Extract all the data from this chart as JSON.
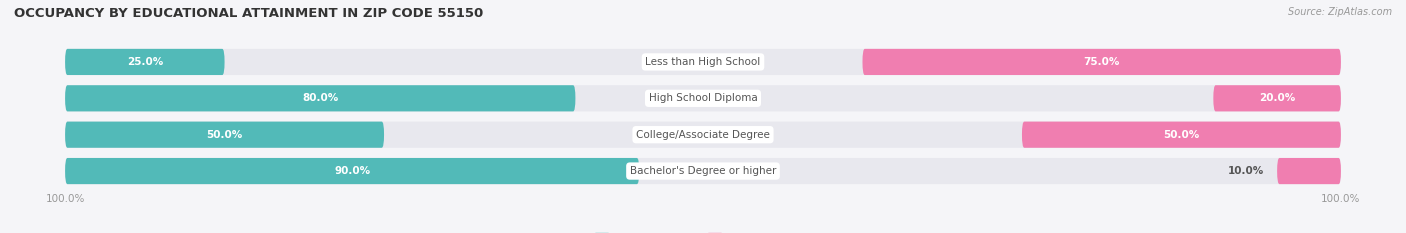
{
  "title": "OCCUPANCY BY EDUCATIONAL ATTAINMENT IN ZIP CODE 55150",
  "source": "Source: ZipAtlas.com",
  "categories": [
    "Less than High School",
    "High School Diploma",
    "College/Associate Degree",
    "Bachelor's Degree or higher"
  ],
  "owner_pct": [
    25.0,
    80.0,
    50.0,
    90.0
  ],
  "renter_pct": [
    75.0,
    20.0,
    50.0,
    10.0
  ],
  "owner_color": "#52BAB8",
  "renter_color": "#F07EB0",
  "bar_bg_color": "#E8E8EE",
  "figsize": [
    14.06,
    2.33
  ],
  "dpi": 100,
  "title_fontsize": 9.5,
  "label_fontsize": 7.5,
  "tick_fontsize": 7.5,
  "source_fontsize": 7,
  "legend_fontsize": 7.5,
  "axis_label_color": "#999999",
  "text_color_dark": "#555555",
  "text_color_white": "#ffffff",
  "category_label_color": "#555555",
  "background_color": "#f5f5f8"
}
